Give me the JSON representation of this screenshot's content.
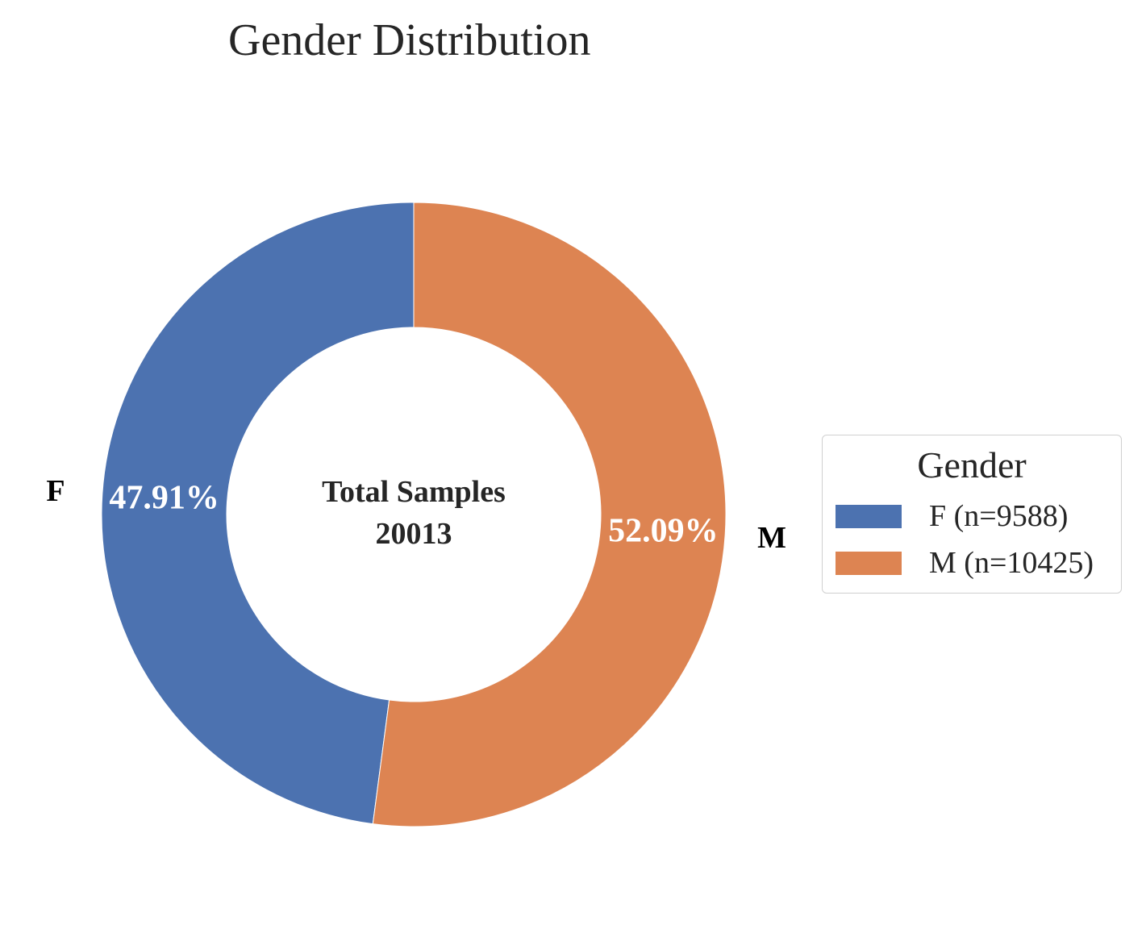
{
  "chart_data": {
    "type": "pie",
    "variant": "donut",
    "title": "Gender Distribution",
    "center_text": [
      "Total Samples",
      "20013"
    ],
    "total": 20013,
    "categories": [
      "F",
      "M"
    ],
    "values": [
      9588,
      10425
    ],
    "percent_labels": [
      "47.91%",
      "52.09%"
    ],
    "colors": [
      "#4c72b0",
      "#dd8452"
    ],
    "legend": {
      "title": "Gender",
      "placement": "right",
      "entries": [
        "F (n=9588)",
        "M (n=10425)"
      ]
    }
  }
}
